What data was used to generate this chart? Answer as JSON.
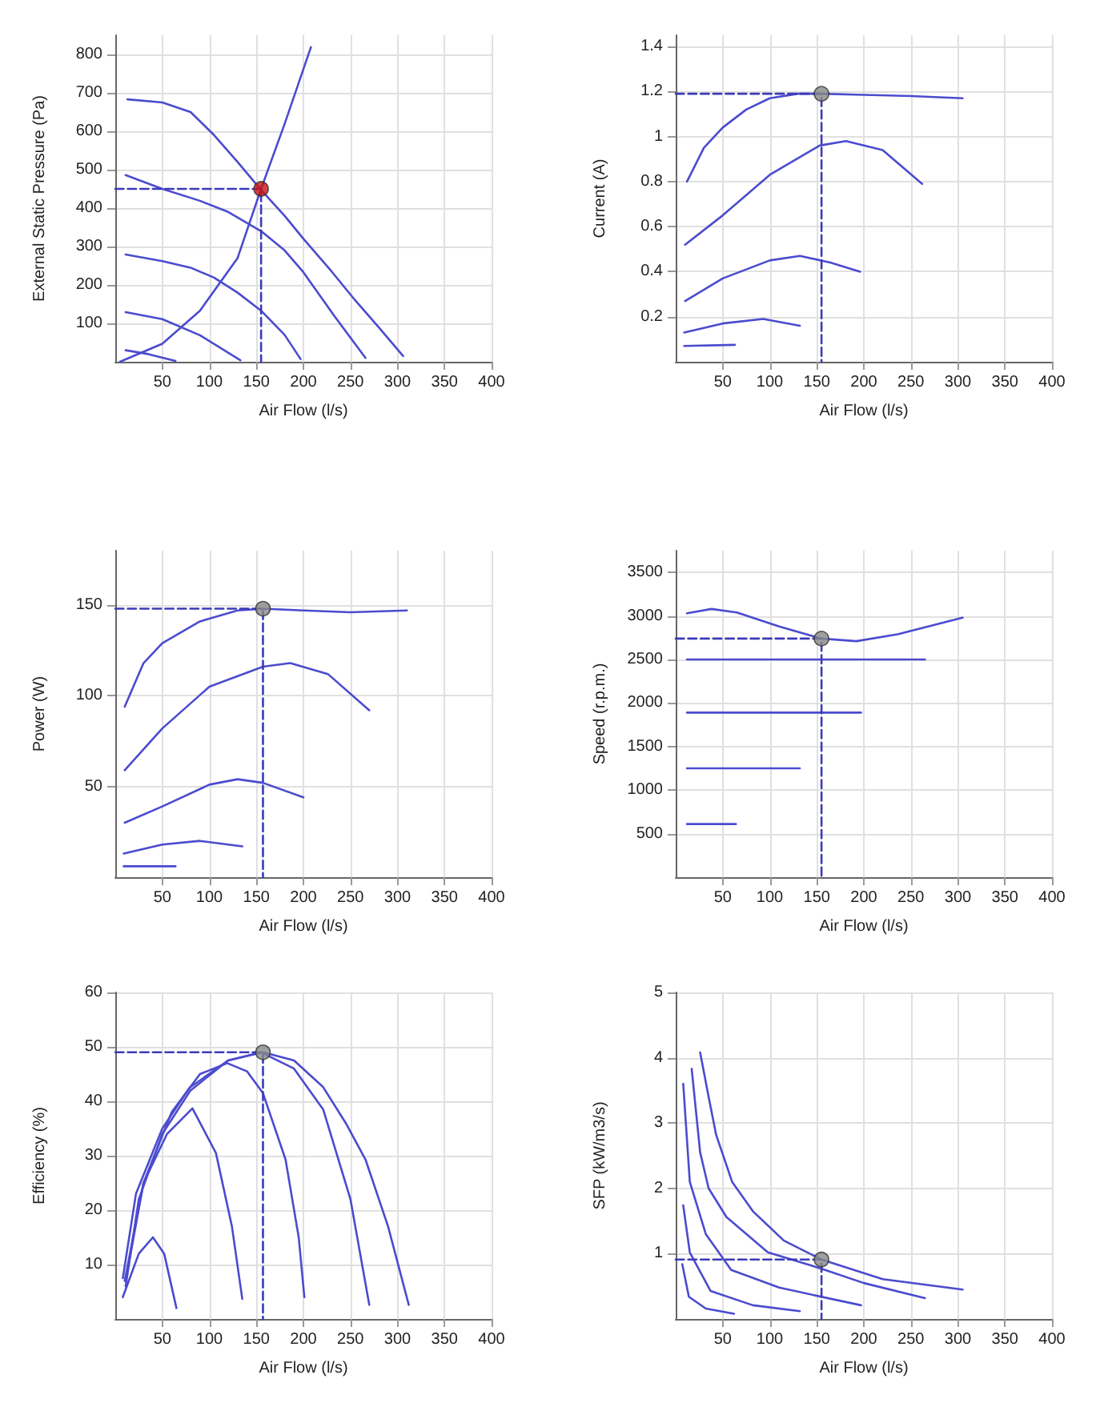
{
  "chart_data": [
    {
      "type": "line",
      "xlabel": "Air Flow (l/s)",
      "ylabel": "External Static Pressure (Pa)",
      "xlim": [
        0,
        400
      ],
      "ylim": [
        0,
        850
      ],
      "xticks": [
        50,
        100,
        150,
        200,
        250,
        300,
        350,
        400
      ],
      "yticks": [
        100,
        200,
        300,
        400,
        500,
        600,
        700,
        800
      ],
      "grid": true,
      "series": [
        {
          "color": "#4b4bcf",
          "marker": "none",
          "x": [
            13,
            50,
            80,
            105,
            130,
            155,
            180,
            200,
            230,
            255,
            280,
            306
          ],
          "values": [
            683,
            675,
            650,
            590,
            520,
            447,
            380,
            320,
            235,
            160,
            90,
            15
          ]
        },
        {
          "color": "#4b4bcf",
          "marker": "none",
          "x": [
            11,
            50,
            90,
            120,
            155,
            180,
            200,
            233,
            266
          ],
          "values": [
            486,
            450,
            419,
            390,
            340,
            290,
            233,
            119,
            10
          ]
        },
        {
          "color": "#4b4bcf",
          "marker": "none",
          "x": [
            11,
            50,
            80,
            105,
            130,
            155,
            180,
            197
          ],
          "values": [
            279,
            262,
            245,
            219,
            180,
            133,
            70,
            7
          ]
        },
        {
          "color": "#4b4bcf",
          "marker": "none",
          "x": [
            11,
            50,
            90,
            133
          ],
          "values": [
            129,
            111,
            69,
            4
          ]
        },
        {
          "color": "#4b4bcf",
          "marker": "none",
          "x": [
            11,
            35,
            64
          ],
          "values": [
            30,
            20,
            2
          ]
        },
        {
          "color": "#4b4bcf",
          "marker": "none",
          "x": [
            5,
            50,
            90,
            130,
            155,
            180,
            208
          ],
          "values": [
            0,
            47,
            133,
            270,
            450,
            619,
            819
          ]
        },
        {
          "color": "#3b3bb8",
          "marker": "none",
          "line_style": "dashed",
          "x": [
            0,
            155,
            155
          ],
          "values": [
            450,
            450,
            0
          ]
        },
        {
          "type": "scatter",
          "color": "#cc1111",
          "marker": "circle",
          "x": [
            155
          ],
          "values": [
            450
          ]
        }
      ]
    },
    {
      "type": "line",
      "xlabel": "Air Flow (l/s)",
      "ylabel": "Current (A)",
      "xlim": [
        0,
        400
      ],
      "ylim": [
        0,
        1.45
      ],
      "xticks": [
        50,
        100,
        150,
        200,
        250,
        300,
        350,
        400
      ],
      "yticks": [
        0.2,
        0.4,
        0.6,
        0.8,
        1,
        1.2,
        1.4
      ],
      "grid": true,
      "series": [
        {
          "color": "#4b4bcf",
          "marker": "none",
          "x": [
            12,
            30,
            50,
            75,
            100,
            130,
            155,
            200,
            250,
            305
          ],
          "values": [
            0.8,
            0.95,
            1.04,
            1.12,
            1.17,
            1.19,
            1.19,
            1.185,
            1.18,
            1.17
          ]
        },
        {
          "color": "#4b4bcf",
          "marker": "none",
          "x": [
            10,
            50,
            100,
            153,
            181,
            220,
            262
          ],
          "values": [
            0.52,
            0.65,
            0.83,
            0.96,
            0.98,
            0.94,
            0.79
          ]
        },
        {
          "color": "#4b4bcf",
          "marker": "none",
          "x": [
            10,
            50,
            100,
            132,
            165,
            196
          ],
          "values": [
            0.27,
            0.37,
            0.45,
            0.47,
            0.44,
            0.4
          ]
        },
        {
          "color": "#4b4bcf",
          "marker": "none",
          "x": [
            9,
            50,
            93,
            132
          ],
          "values": [
            0.13,
            0.17,
            0.19,
            0.16
          ]
        },
        {
          "color": "#4b4bcf",
          "marker": "none",
          "x": [
            9,
            63
          ],
          "values": [
            0.07,
            0.075
          ]
        },
        {
          "color": "#3b3bb8",
          "marker": "none",
          "line_style": "dashed",
          "x": [
            0,
            155,
            155
          ],
          "values": [
            1.19,
            1.19,
            0
          ]
        },
        {
          "type": "scatter",
          "color": "#888888",
          "marker": "circle",
          "x": [
            155
          ],
          "values": [
            1.19
          ]
        }
      ]
    },
    {
      "type": "line",
      "xlabel": "Air Flow (l/s)",
      "ylabel": "Power (W)",
      "xlim": [
        0,
        400
      ],
      "ylim": [
        0,
        180
      ],
      "xticks": [
        50,
        100,
        150,
        200,
        250,
        300,
        350,
        400
      ],
      "yticks": [
        50,
        100,
        150
      ],
      "grid": true,
      "series": [
        {
          "color": "#4b4bcf",
          "marker": "none",
          "x": [
            10,
            30,
            50,
            90,
            130,
            157,
            200,
            250,
            310
          ],
          "values": [
            94,
            118,
            129,
            141,
            147,
            148,
            147,
            146,
            147
          ]
        },
        {
          "color": "#4b4bcf",
          "marker": "none",
          "x": [
            10,
            50,
            100,
            157,
            186,
            226,
            270
          ],
          "values": [
            59,
            82,
            105,
            116,
            118,
            112,
            92
          ]
        },
        {
          "color": "#4b4bcf",
          "marker": "none",
          "x": [
            10,
            50,
            100,
            130,
            157,
            200
          ],
          "values": [
            30,
            39,
            51,
            54,
            52,
            44
          ]
        },
        {
          "color": "#4b4bcf",
          "marker": "none",
          "x": [
            9,
            50,
            90,
            135
          ],
          "values": [
            13,
            18,
            20,
            17
          ]
        },
        {
          "color": "#4b4bcf",
          "marker": "none",
          "x": [
            9,
            64
          ],
          "values": [
            6,
            6
          ]
        },
        {
          "color": "#3b3bb8",
          "marker": "none",
          "line_style": "dashed",
          "x": [
            0,
            157,
            157
          ],
          "values": [
            148,
            148,
            0
          ]
        },
        {
          "type": "scatter",
          "color": "#888888",
          "marker": "circle",
          "x": [
            157
          ],
          "values": [
            148
          ]
        }
      ]
    },
    {
      "type": "line",
      "xlabel": "Air Flow (l/s)",
      "ylabel": "Speed (r.p.m.)",
      "xlim": [
        0,
        400
      ],
      "ylim": [
        0,
        3750
      ],
      "xticks": [
        50,
        100,
        150,
        200,
        250,
        300,
        350,
        400
      ],
      "yticks": [
        500,
        1000,
        1500,
        2000,
        2500,
        3000,
        3500
      ],
      "grid": true,
      "series": [
        {
          "color": "#4b4bcf",
          "marker": "none",
          "x": [
            12,
            38,
            65,
            110,
            155,
            192,
            236,
            305
          ],
          "values": [
            3030,
            3080,
            3040,
            2880,
            2740,
            2710,
            2790,
            2980
          ]
        },
        {
          "color": "#4b4bcf",
          "marker": "none",
          "x": [
            12,
            265
          ],
          "values": [
            2500,
            2500
          ]
        },
        {
          "color": "#4b4bcf",
          "marker": "none",
          "x": [
            12,
            197
          ],
          "values": [
            1890,
            1890
          ]
        },
        {
          "color": "#4b4bcf",
          "marker": "none",
          "x": [
            12,
            132
          ],
          "values": [
            1250,
            1250
          ]
        },
        {
          "color": "#4b4bcf",
          "marker": "none",
          "x": [
            12,
            64
          ],
          "values": [
            610,
            610
          ]
        },
        {
          "color": "#3b3bb8",
          "marker": "none",
          "line_style": "dashed",
          "x": [
            0,
            155,
            155
          ],
          "values": [
            2740,
            2740,
            0
          ]
        },
        {
          "type": "scatter",
          "color": "#888888",
          "marker": "circle",
          "x": [
            155
          ],
          "values": [
            2740
          ]
        }
      ]
    },
    {
      "type": "line",
      "xlabel": "Air Flow (l/s)",
      "ylabel": "Efficiency (%)",
      "xlim": [
        0,
        400
      ],
      "ylim": [
        0,
        60
      ],
      "xticks": [
        50,
        100,
        150,
        200,
        250,
        300,
        350,
        400
      ],
      "yticks": [
        10,
        20,
        30,
        40,
        50,
        60
      ],
      "grid": true,
      "series": [
        {
          "color": "#4b4bcf",
          "marker": "none",
          "x": [
            8,
            22,
            50,
            79,
            120,
            157,
            190,
            221,
            245,
            266,
            290,
            312
          ],
          "values": [
            7.5,
            23,
            35,
            42.5,
            47.5,
            49,
            47.5,
            42.6,
            36,
            29.3,
            17,
            2.6
          ]
        },
        {
          "color": "#4b4bcf",
          "marker": "none",
          "x": [
            11,
            25,
            50,
            80,
            120,
            155,
            190,
            221,
            250,
            270
          ],
          "values": [
            6,
            22,
            34,
            42,
            47.5,
            49,
            46,
            38.5,
            22,
            2.6
          ]
        },
        {
          "color": "#4b4bcf",
          "marker": "none",
          "x": [
            11,
            30,
            60,
            90,
            119,
            140,
            157,
            181,
            195,
            201
          ],
          "values": [
            7,
            25,
            38,
            45,
            47,
            45.5,
            41.5,
            29.3,
            15,
            4
          ]
        },
        {
          "color": "#4b4bcf",
          "marker": "none",
          "x": [
            10,
            30,
            55,
            82,
            107,
            124,
            135
          ],
          "values": [
            7,
            25,
            34,
            38.7,
            30.5,
            17,
            3.7
          ]
        },
        {
          "color": "#4b4bcf",
          "marker": "none",
          "x": [
            8,
            25,
            40,
            52,
            65
          ],
          "values": [
            4,
            12,
            15,
            12,
            2
          ]
        },
        {
          "color": "#3b3bb8",
          "marker": "none",
          "line_style": "dashed",
          "x": [
            0,
            157,
            157
          ],
          "values": [
            49,
            49,
            0
          ]
        },
        {
          "type": "scatter",
          "color": "#888888",
          "marker": "circle",
          "x": [
            157
          ],
          "values": [
            49
          ]
        }
      ]
    },
    {
      "type": "line",
      "xlabel": "Air Flow (l/s)",
      "ylabel": "SFP (kW/m3/s)",
      "xlim": [
        0,
        400
      ],
      "ylim": [
        0,
        5
      ],
      "xticks": [
        50,
        100,
        150,
        200,
        250,
        300,
        350,
        400
      ],
      "yticks": [
        1,
        2,
        3,
        4,
        5
      ],
      "grid": true,
      "series": [
        {
          "color": "#4b4bcf",
          "marker": "none",
          "x": [
            26,
            35,
            43,
            60,
            82,
            115,
            155,
            220,
            305
          ],
          "values": [
            4.08,
            3.4,
            2.82,
            2.1,
            1.65,
            1.2,
            0.91,
            0.61,
            0.45
          ]
        },
        {
          "color": "#4b4bcf",
          "marker": "none",
          "x": [
            17,
            26,
            35,
            54,
            98,
            155,
            200,
            265
          ],
          "values": [
            3.83,
            2.55,
            2,
            1.56,
            1.02,
            0.77,
            0.55,
            0.32
          ]
        },
        {
          "color": "#4b4bcf",
          "marker": "none",
          "x": [
            8,
            15,
            32,
            59,
            110,
            197
          ],
          "values": [
            3.6,
            2.1,
            1.3,
            0.75,
            0.48,
            0.21
          ]
        },
        {
          "color": "#4b4bcf",
          "marker": "none",
          "x": [
            8,
            15,
            37,
            82,
            132
          ],
          "values": [
            1.74,
            1.02,
            0.43,
            0.21,
            0.12
          ]
        },
        {
          "color": "#4b4bcf",
          "marker": "none",
          "x": [
            7,
            14,
            32,
            62
          ],
          "values": [
            0.84,
            0.34,
            0.16,
            0.08
          ]
        },
        {
          "color": "#3b3bb8",
          "marker": "none",
          "line_style": "dashed",
          "x": [
            0,
            155,
            155
          ],
          "values": [
            0.91,
            0.91,
            0
          ]
        },
        {
          "type": "scatter",
          "color": "#888888",
          "marker": "circle",
          "x": [
            155
          ],
          "values": [
            0.91
          ]
        }
      ]
    }
  ]
}
